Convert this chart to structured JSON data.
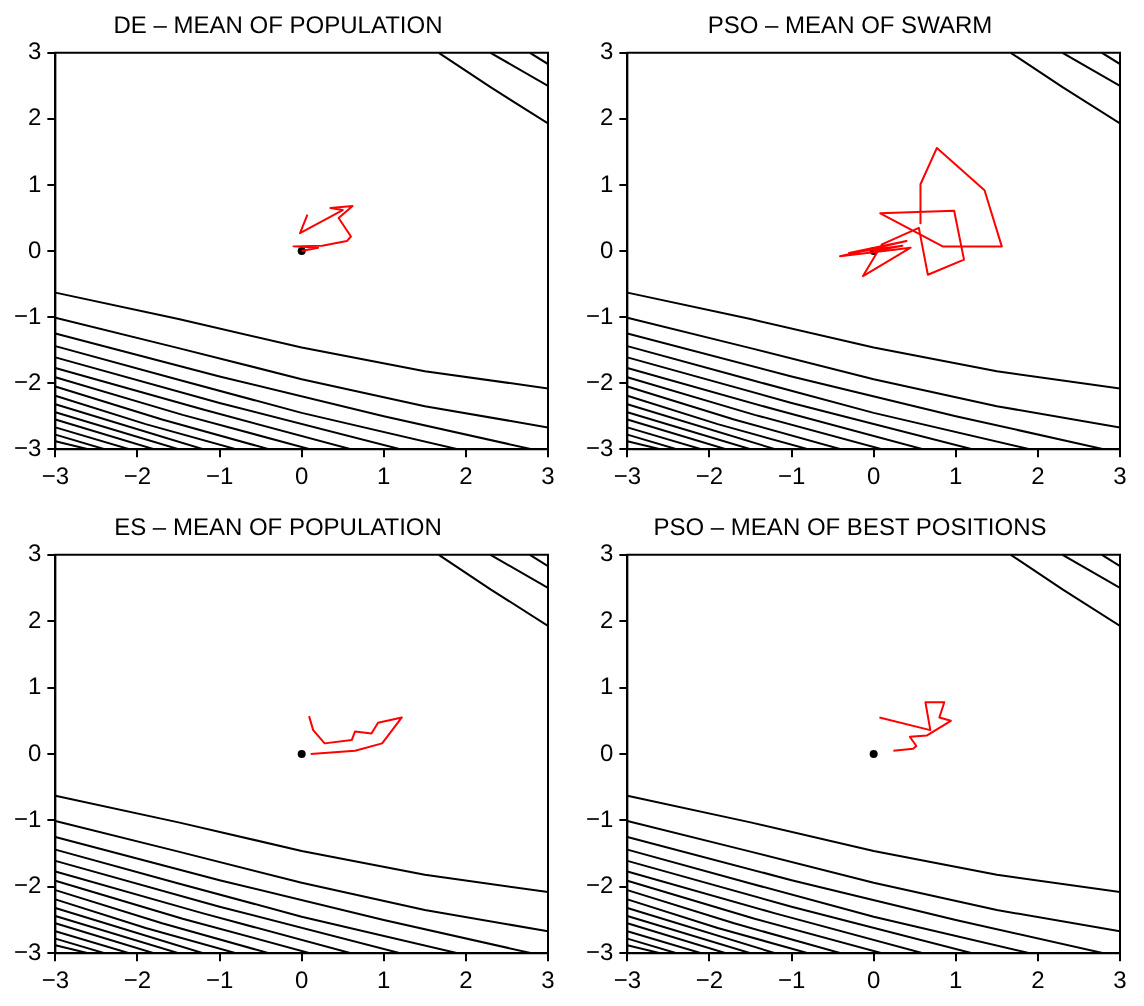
{
  "chart_data": [
    {
      "type": "line",
      "title": "DE – MEAN OF POPULATION",
      "xlim": [
        -3,
        3
      ],
      "ylim": [
        -3,
        3
      ],
      "xticks": [
        -3,
        -2,
        -1,
        0,
        1,
        2,
        3
      ],
      "yticks": [
        -3,
        -2,
        -1,
        0,
        1,
        2,
        3
      ],
      "grid": false,
      "legend": false,
      "series": [
        {
          "color": "#000000",
          "x": [
            -3,
            -1.5,
            0,
            1.5,
            3
          ],
          "values": [
            -0.63,
            -1.03,
            -1.46,
            -1.82,
            -2.08
          ]
        },
        {
          "color": "#000000",
          "x": [
            -3,
            -1.5,
            0,
            1.5,
            3
          ],
          "values": [
            -1.01,
            -1.47,
            -1.94,
            -2.35,
            -2.67
          ]
        },
        {
          "color": "#000000",
          "x": [
            -3,
            -1,
            1,
            2.8
          ],
          "values": [
            -1.25,
            -1.9,
            -2.5,
            -3
          ]
        },
        {
          "color": "#000000",
          "x": [
            -3,
            -1.5,
            0,
            1.9
          ],
          "values": [
            -1.44,
            -1.95,
            -2.45,
            -3
          ]
        },
        {
          "color": "#000000",
          "x": [
            -3,
            -1,
            1.2
          ],
          "values": [
            -1.61,
            -2.3,
            -3
          ]
        },
        {
          "color": "#000000",
          "x": [
            -3,
            -1.2,
            0.6
          ],
          "values": [
            -1.77,
            -2.4,
            -3
          ]
        },
        {
          "color": "#000000",
          "x": [
            -3,
            -1.45,
            0.1
          ],
          "values": [
            -1.91,
            -2.48,
            -3
          ]
        },
        {
          "color": "#000000",
          "x": [
            -3,
            -1.7,
            -0.4
          ],
          "values": [
            -2.05,
            -2.55,
            -3
          ]
        },
        {
          "color": "#000000",
          "x": [
            -3,
            -1.9,
            -0.8
          ],
          "values": [
            -2.19,
            -2.62,
            -3
          ]
        },
        {
          "color": "#000000",
          "x": [
            -3,
            -1.2
          ],
          "values": [
            -2.32,
            -3
          ]
        },
        {
          "color": "#000000",
          "x": [
            -3,
            -1.5
          ],
          "values": [
            -2.44,
            -3
          ]
        },
        {
          "color": "#000000",
          "x": [
            -3,
            -1.8
          ],
          "values": [
            -2.55,
            -3
          ]
        },
        {
          "color": "#000000",
          "x": [
            -3,
            -2.1
          ],
          "values": [
            -2.67,
            -3
          ]
        },
        {
          "color": "#000000",
          "x": [
            -3,
            -2.4
          ],
          "values": [
            -2.78,
            -3
          ]
        },
        {
          "color": "#000000",
          "x": [
            -3,
            -2.6
          ],
          "values": [
            -2.88,
            -3
          ]
        },
        {
          "color": "#000000",
          "x": [
            1.67,
            2.3,
            3
          ],
          "values": [
            3,
            2.48,
            1.93
          ]
        },
        {
          "color": "#000000",
          "x": [
            2.3,
            3
          ],
          "values": [
            3,
            2.5
          ]
        },
        {
          "color": "#000000",
          "x": [
            2.78,
            3
          ],
          "values": [
            3,
            2.83
          ]
        },
        {
          "color": "#ff0000",
          "x": [
            0,
            0.2,
            -0.1,
            0.25,
            0.55,
            0.6,
            0.45,
            0.62,
            0.35,
            0.5,
            -0.02,
            0.07
          ],
          "values": [
            0,
            0.05,
            0.07,
            0.08,
            0.15,
            0.22,
            0.5,
            0.68,
            0.65,
            0.62,
            0.27,
            0.55
          ]
        },
        {
          "type": "scatter",
          "marker": "circle",
          "color": "#000000",
          "x": [
            0
          ],
          "values": [
            0
          ]
        }
      ]
    },
    {
      "type": "line",
      "title": "PSO – MEAN OF SWARM",
      "xlim": [
        -3,
        3
      ],
      "ylim": [
        -3,
        3
      ],
      "xticks": [
        -3,
        -2,
        -1,
        0,
        1,
        2,
        3
      ],
      "yticks": [
        -3,
        -2,
        -1,
        0,
        1,
        2,
        3
      ],
      "grid": false,
      "legend": false,
      "series": [
        {
          "color": "#000000",
          "x": [
            -3,
            -1.5,
            0,
            1.5,
            3
          ],
          "values": [
            -0.63,
            -1.03,
            -1.46,
            -1.82,
            -2.08
          ]
        },
        {
          "color": "#000000",
          "x": [
            -3,
            -1.5,
            0,
            1.5,
            3
          ],
          "values": [
            -1.01,
            -1.47,
            -1.94,
            -2.35,
            -2.67
          ]
        },
        {
          "color": "#000000",
          "x": [
            -3,
            -1,
            1,
            2.8
          ],
          "values": [
            -1.25,
            -1.9,
            -2.5,
            -3
          ]
        },
        {
          "color": "#000000",
          "x": [
            -3,
            -1.5,
            0,
            1.9
          ],
          "values": [
            -1.44,
            -1.95,
            -2.45,
            -3
          ]
        },
        {
          "color": "#000000",
          "x": [
            -3,
            -1,
            1.2
          ],
          "values": [
            -1.61,
            -2.3,
            -3
          ]
        },
        {
          "color": "#000000",
          "x": [
            -3,
            -1.2,
            0.6
          ],
          "values": [
            -1.77,
            -2.4,
            -3
          ]
        },
        {
          "color": "#000000",
          "x": [
            -3,
            -1.45,
            0.1
          ],
          "values": [
            -1.91,
            -2.48,
            -3
          ]
        },
        {
          "color": "#000000",
          "x": [
            -3,
            -1.7,
            -0.4
          ],
          "values": [
            -2.05,
            -2.55,
            -3
          ]
        },
        {
          "color": "#000000",
          "x": [
            -3,
            -1.9,
            -0.8
          ],
          "values": [
            -2.19,
            -2.62,
            -3
          ]
        },
        {
          "color": "#000000",
          "x": [
            -3,
            -1.2
          ],
          "values": [
            -2.32,
            -3
          ]
        },
        {
          "color": "#000000",
          "x": [
            -3,
            -1.5
          ],
          "values": [
            -2.44,
            -3
          ]
        },
        {
          "color": "#000000",
          "x": [
            -3,
            -1.8
          ],
          "values": [
            -2.55,
            -3
          ]
        },
        {
          "color": "#000000",
          "x": [
            -3,
            -2.1
          ],
          "values": [
            -2.67,
            -3
          ]
        },
        {
          "color": "#000000",
          "x": [
            -3,
            -2.4
          ],
          "values": [
            -2.78,
            -3
          ]
        },
        {
          "color": "#000000",
          "x": [
            -3,
            -2.6
          ],
          "values": [
            -2.88,
            -3
          ]
        },
        {
          "color": "#000000",
          "x": [
            1.67,
            2.3,
            3
          ],
          "values": [
            3,
            2.48,
            1.93
          ]
        },
        {
          "color": "#000000",
          "x": [
            2.3,
            3
          ],
          "values": [
            3,
            2.5
          ]
        },
        {
          "color": "#000000",
          "x": [
            2.78,
            3
          ],
          "values": [
            3,
            2.83
          ]
        },
        {
          "color": "#ff0000",
          "x": [
            0,
            0.35,
            -0.3,
            0.4,
            -0.41,
            0.45,
            -0.13,
            0.1,
            0.55,
            0.66,
            1.1,
            0.98,
            0.08,
            0.84,
            1.56,
            1.35,
            0.77,
            0.57,
            0.57
          ],
          "values": [
            0,
            0.08,
            -0.03,
            0.15,
            -0.08,
            0.05,
            -0.38,
            0.1,
            0.35,
            -0.36,
            -0.13,
            0.61,
            0.57,
            0.07,
            0.07,
            0.92,
            1.56,
            1.01,
            0.42
          ]
        },
        {
          "type": "scatter",
          "marker": "circle",
          "color": "#000000",
          "x": [
            0
          ],
          "values": [
            0
          ]
        }
      ]
    },
    {
      "type": "line",
      "title": "ES – MEAN OF POPULATION",
      "xlim": [
        -3,
        3
      ],
      "ylim": [
        -3,
        3
      ],
      "xticks": [
        -3,
        -2,
        -1,
        0,
        1,
        2,
        3
      ],
      "yticks": [
        -3,
        -2,
        -1,
        0,
        1,
        2,
        3
      ],
      "grid": false,
      "legend": false,
      "series": [
        {
          "color": "#000000",
          "x": [
            -3,
            -1.5,
            0,
            1.5,
            3
          ],
          "values": [
            -0.63,
            -1.03,
            -1.46,
            -1.82,
            -2.08
          ]
        },
        {
          "color": "#000000",
          "x": [
            -3,
            -1.5,
            0,
            1.5,
            3
          ],
          "values": [
            -1.01,
            -1.47,
            -1.94,
            -2.35,
            -2.67
          ]
        },
        {
          "color": "#000000",
          "x": [
            -3,
            -1,
            1,
            2.8
          ],
          "values": [
            -1.25,
            -1.9,
            -2.5,
            -3
          ]
        },
        {
          "color": "#000000",
          "x": [
            -3,
            -1.5,
            0,
            1.9
          ],
          "values": [
            -1.44,
            -1.95,
            -2.45,
            -3
          ]
        },
        {
          "color": "#000000",
          "x": [
            -3,
            -1,
            1.2
          ],
          "values": [
            -1.61,
            -2.3,
            -3
          ]
        },
        {
          "color": "#000000",
          "x": [
            -3,
            -1.2,
            0.6
          ],
          "values": [
            -1.77,
            -2.4,
            -3
          ]
        },
        {
          "color": "#000000",
          "x": [
            -3,
            -1.45,
            0.1
          ],
          "values": [
            -1.91,
            -2.48,
            -3
          ]
        },
        {
          "color": "#000000",
          "x": [
            -3,
            -1.7,
            -0.4
          ],
          "values": [
            -2.05,
            -2.55,
            -3
          ]
        },
        {
          "color": "#000000",
          "x": [
            -3,
            -1.9,
            -0.8
          ],
          "values": [
            -2.19,
            -2.62,
            -3
          ]
        },
        {
          "color": "#000000",
          "x": [
            -3,
            -1.2
          ],
          "values": [
            -2.32,
            -3
          ]
        },
        {
          "color": "#000000",
          "x": [
            -3,
            -1.5
          ],
          "values": [
            -2.44,
            -3
          ]
        },
        {
          "color": "#000000",
          "x": [
            -3,
            -1.8
          ],
          "values": [
            -2.55,
            -3
          ]
        },
        {
          "color": "#000000",
          "x": [
            -3,
            -2.1
          ],
          "values": [
            -2.67,
            -3
          ]
        },
        {
          "color": "#000000",
          "x": [
            -3,
            -2.4
          ],
          "values": [
            -2.78,
            -3
          ]
        },
        {
          "color": "#000000",
          "x": [
            -3,
            -2.6
          ],
          "values": [
            -2.88,
            -3
          ]
        },
        {
          "color": "#000000",
          "x": [
            1.67,
            2.3,
            3
          ],
          "values": [
            3,
            2.48,
            1.93
          ]
        },
        {
          "color": "#000000",
          "x": [
            2.3,
            3
          ],
          "values": [
            3,
            2.5
          ]
        },
        {
          "color": "#000000",
          "x": [
            2.78,
            3
          ],
          "values": [
            3,
            2.83
          ]
        },
        {
          "color": "#ff0000",
          "x": [
            0.11,
            0.65,
            0.98,
            1.22,
            0.93,
            0.85,
            0.65,
            0.61,
            0.28,
            0.14,
            0.09
          ],
          "values": [
            0,
            0.05,
            0.16,
            0.55,
            0.47,
            0.31,
            0.34,
            0.21,
            0.16,
            0.36,
            0.57
          ]
        },
        {
          "type": "scatter",
          "marker": "circle",
          "color": "#000000",
          "x": [
            0
          ],
          "values": [
            0
          ]
        }
      ]
    },
    {
      "type": "line",
      "title": "PSO – MEAN OF BEST POSITIONS",
      "xlim": [
        -3,
        3
      ],
      "ylim": [
        -3,
        3
      ],
      "xticks": [
        -3,
        -2,
        -1,
        0,
        1,
        2,
        3
      ],
      "yticks": [
        -3,
        -2,
        -1,
        0,
        1,
        2,
        3
      ],
      "grid": false,
      "legend": false,
      "series": [
        {
          "color": "#000000",
          "x": [
            -3,
            -1.5,
            0,
            1.5,
            3
          ],
          "values": [
            -0.63,
            -1.03,
            -1.46,
            -1.82,
            -2.08
          ]
        },
        {
          "color": "#000000",
          "x": [
            -3,
            -1.5,
            0,
            1.5,
            3
          ],
          "values": [
            -1.01,
            -1.47,
            -1.94,
            -2.35,
            -2.67
          ]
        },
        {
          "color": "#000000",
          "x": [
            -3,
            -1,
            1,
            2.8
          ],
          "values": [
            -1.25,
            -1.9,
            -2.5,
            -3
          ]
        },
        {
          "color": "#000000",
          "x": [
            -3,
            -1.5,
            0,
            1.9
          ],
          "values": [
            -1.44,
            -1.95,
            -2.45,
            -3
          ]
        },
        {
          "color": "#000000",
          "x": [
            -3,
            -1,
            1.2
          ],
          "values": [
            -1.61,
            -2.3,
            -3
          ]
        },
        {
          "color": "#000000",
          "x": [
            -3,
            -1.2,
            0.6
          ],
          "values": [
            -1.77,
            -2.4,
            -3
          ]
        },
        {
          "color": "#000000",
          "x": [
            -3,
            -1.45,
            0.1
          ],
          "values": [
            -1.91,
            -2.48,
            -3
          ]
        },
        {
          "color": "#000000",
          "x": [
            -3,
            -1.7,
            -0.4
          ],
          "values": [
            -2.05,
            -2.55,
            -3
          ]
        },
        {
          "color": "#000000",
          "x": [
            -3,
            -1.9,
            -0.8
          ],
          "values": [
            -2.19,
            -2.62,
            -3
          ]
        },
        {
          "color": "#000000",
          "x": [
            -3,
            -1.2
          ],
          "values": [
            -2.32,
            -3
          ]
        },
        {
          "color": "#000000",
          "x": [
            -3,
            -1.5
          ],
          "values": [
            -2.44,
            -3
          ]
        },
        {
          "color": "#000000",
          "x": [
            -3,
            -1.8
          ],
          "values": [
            -2.55,
            -3
          ]
        },
        {
          "color": "#000000",
          "x": [
            -3,
            -2.1
          ],
          "values": [
            -2.67,
            -3
          ]
        },
        {
          "color": "#000000",
          "x": [
            -3,
            -2.4
          ],
          "values": [
            -2.78,
            -3
          ]
        },
        {
          "color": "#000000",
          "x": [
            -3,
            -2.6
          ],
          "values": [
            -2.88,
            -3
          ]
        },
        {
          "color": "#000000",
          "x": [
            1.67,
            2.3,
            3
          ],
          "values": [
            3,
            2.48,
            1.93
          ]
        },
        {
          "color": "#000000",
          "x": [
            2.3,
            3
          ],
          "values": [
            3,
            2.5
          ]
        },
        {
          "color": "#000000",
          "x": [
            2.78,
            3
          ],
          "values": [
            3,
            2.83
          ]
        },
        {
          "color": "#ff0000",
          "x": [
            0.24,
            0.48,
            0.52,
            0.44,
            0.65,
            0.94,
            0.8,
            0.86,
            0.63,
            0.69,
            0.07
          ],
          "values": [
            0.05,
            0.08,
            0.12,
            0.26,
            0.28,
            0.5,
            0.55,
            0.78,
            0.78,
            0.36,
            0.55
          ]
        },
        {
          "type": "scatter",
          "marker": "circle",
          "color": "#000000",
          "x": [
            0
          ],
          "values": [
            0
          ]
        }
      ]
    }
  ]
}
